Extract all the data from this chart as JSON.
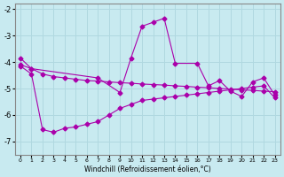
{
  "xlabel": "Windchill (Refroidissement éolien,°C)",
  "background_color": "#c8eaf0",
  "line_color": "#aa00aa",
  "grid_color": "#b0d8e0",
  "ylim": [
    -7.5,
    -1.8
  ],
  "xlim": [
    -0.5,
    23.5
  ],
  "yticks": [
    -7,
    -6,
    -5,
    -4,
    -3,
    -2
  ],
  "xticks": [
    0,
    1,
    2,
    3,
    4,
    5,
    6,
    7,
    8,
    9,
    10,
    11,
    12,
    13,
    14,
    15,
    16,
    17,
    18,
    19,
    20,
    21,
    22,
    23
  ],
  "line1_x": [
    0,
    1,
    7,
    9,
    10,
    11,
    12,
    13,
    14,
    16,
    17,
    18,
    19,
    20,
    21,
    22,
    23
  ],
  "line1_y": [
    -3.85,
    -4.25,
    -4.6,
    -5.15,
    -3.85,
    -2.65,
    -2.5,
    -2.35,
    -4.05,
    -4.05,
    -4.9,
    -4.7,
    -5.1,
    -5.3,
    -4.75,
    -4.6,
    -5.25
  ],
  "line2_x": [
    0,
    1,
    2,
    3,
    4,
    5,
    6,
    7,
    8,
    9,
    10,
    11,
    12,
    13,
    14,
    15,
    16,
    17,
    18,
    19,
    20,
    21,
    22,
    23
  ],
  "line2_y": [
    -4.1,
    -4.25,
    -4.45,
    -4.55,
    -4.6,
    -4.65,
    -4.7,
    -4.72,
    -4.75,
    -4.78,
    -4.8,
    -4.83,
    -4.85,
    -4.87,
    -4.9,
    -4.92,
    -4.95,
    -4.97,
    -5.0,
    -5.02,
    -5.05,
    -5.07,
    -5.1,
    -5.12
  ],
  "line3_x": [
    0,
    1,
    2,
    3,
    4,
    5,
    6,
    7,
    8,
    9,
    10,
    11,
    12,
    13,
    14,
    15,
    16,
    17,
    18,
    19,
    20,
    21,
    22,
    23
  ],
  "line3_y": [
    -4.15,
    -4.45,
    -6.55,
    -6.65,
    -6.5,
    -6.45,
    -6.35,
    -6.25,
    -6.0,
    -5.75,
    -5.6,
    -5.45,
    -5.4,
    -5.35,
    -5.3,
    -5.25,
    -5.2,
    -5.15,
    -5.1,
    -5.05,
    -5.0,
    -4.95,
    -4.9,
    -5.35
  ]
}
